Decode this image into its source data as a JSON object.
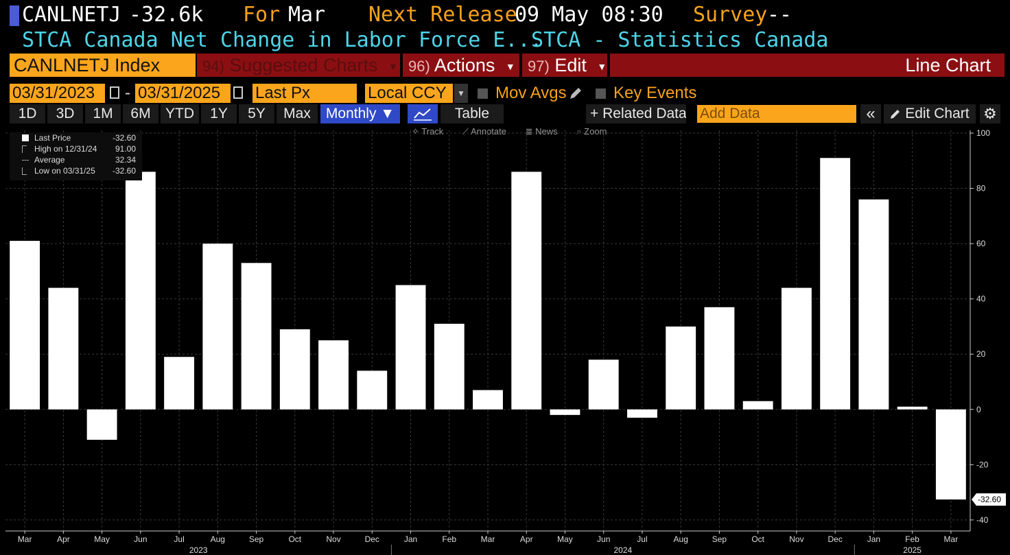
{
  "header": {
    "ticker": "CANLNETJ",
    "last_value": "-32.6k",
    "for_label": "For",
    "for_value": "Mar",
    "next_release_label": "Next Release",
    "next_release_value": "09 May 08:30",
    "survey_label": "Survey",
    "survey_value": "--",
    "description": "STCA Canada Net Change in Labor Force E...",
    "source": "STCA - Statistics Canada"
  },
  "command_bar": {
    "security": "CANLNETJ Index",
    "suggested_num": "94)",
    "suggested_label": "Suggested Charts",
    "actions_num": "96)",
    "actions_label": "Actions",
    "edit_num": "97)",
    "edit_label": "Edit",
    "chart_type": "Line Chart"
  },
  "date_row": {
    "start_date": "03/31/2023",
    "dash": "-",
    "end_date": "03/31/2025",
    "field": "Last Px",
    "currency": "Local CCY",
    "mov_avgs": "Mov Avgs",
    "key_events": "Key Events"
  },
  "range_row": {
    "ranges": [
      "1D",
      "3D",
      "1M",
      "6M",
      "YTD",
      "1Y",
      "5Y",
      "Max"
    ],
    "frequency": "Monthly ▼",
    "table": "Table",
    "related_data": "+ Related Data",
    "add_data_placeholder": "Add Data",
    "collapse": "«",
    "edit_chart": "Edit Chart",
    "settings_icon": "gear-icon"
  },
  "chart_tools": [
    "Track",
    "Annotate",
    "News",
    "Zoom"
  ],
  "legend": {
    "rows": [
      {
        "label": "Last Price",
        "value": "-32.60"
      },
      {
        "label": "High on 12/31/24",
        "value": "91.00"
      },
      {
        "label": "Average",
        "value": "32.34"
      },
      {
        "label": "Low on 03/31/25",
        "value": "-32.60"
      }
    ]
  },
  "chart_data": {
    "type": "bar",
    "categories": [
      "Mar",
      "Apr",
      "May",
      "Jun",
      "Jul",
      "Aug",
      "Sep",
      "Oct",
      "Nov",
      "Dec",
      "Jan",
      "Feb",
      "Mar",
      "Apr",
      "May",
      "Jun",
      "Jul",
      "Aug",
      "Sep",
      "Oct",
      "Nov",
      "Dec",
      "Jan",
      "Feb",
      "Mar"
    ],
    "years": [
      {
        "label": "2023",
        "from_index": 0,
        "to_index": 9
      },
      {
        "label": "2024",
        "from_index": 10,
        "to_index": 21
      },
      {
        "label": "2025",
        "from_index": 22,
        "to_index": 24
      }
    ],
    "values": [
      61,
      44,
      -11,
      86,
      19,
      60,
      53,
      29,
      25,
      14,
      45,
      31,
      7,
      86,
      -2,
      18,
      -3,
      30,
      37,
      3,
      44,
      91,
      76,
      1,
      -32.6
    ],
    "ylim": [
      -44,
      101
    ],
    "yticks": [
      100,
      80,
      60,
      40,
      20,
      0,
      -20,
      -40
    ],
    "last_value_label": "-32.60",
    "bar_color": "#ffffff",
    "grid": true
  }
}
